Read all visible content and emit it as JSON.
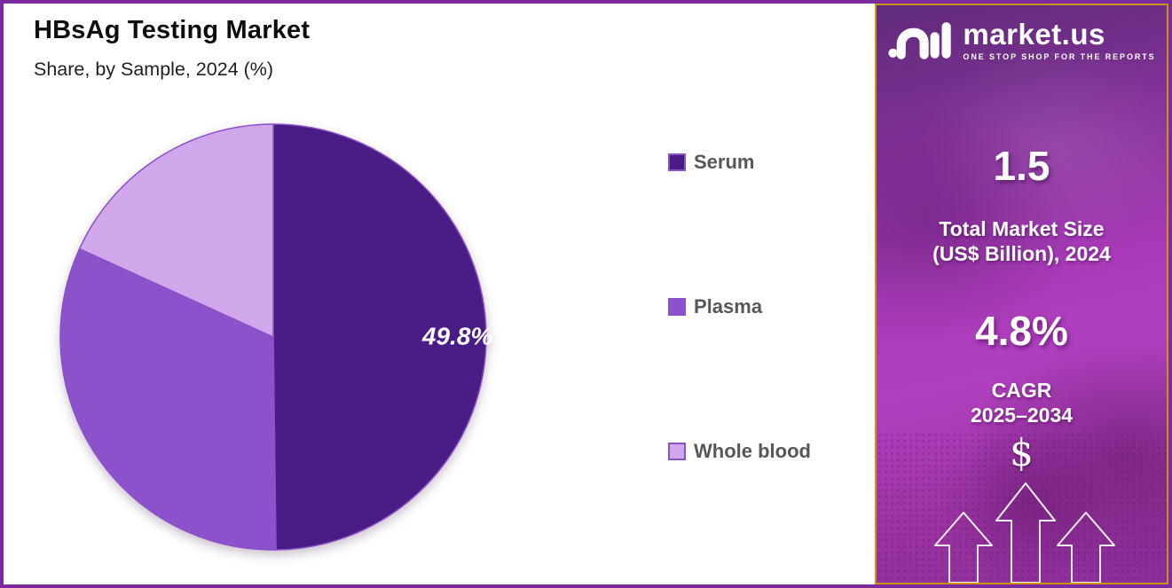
{
  "header": {
    "title": "HBsAg Testing Market",
    "subtitle": "Share, by Sample, 2024 (%)"
  },
  "chart_data": {
    "type": "pie",
    "title": "HBsAg Testing Market",
    "subtitle": "Share, by Sample, 2024 (%)",
    "categories": [
      "Serum",
      "Plasma",
      "Whole blood"
    ],
    "values": [
      49.8,
      32.0,
      18.2
    ],
    "value_labels": [
      "49.8%",
      "",
      ""
    ],
    "colors": [
      "#4a1c85",
      "#8c52cb",
      "#d0a7ea"
    ],
    "slice_border_color": "#8a50c5",
    "start_angle_deg": 0,
    "direction": "clockwise",
    "legend_position": "right"
  },
  "legend": {
    "items": [
      {
        "label": "Serum",
        "color": "#4a1c85",
        "border": "#8a52c8"
      },
      {
        "label": "Plasma",
        "color": "#8c52cb",
        "border": "#8c52cb"
      },
      {
        "label": "Whole blood",
        "color": "#d0a7ea",
        "border": "#8a52c8"
      }
    ]
  },
  "sidebar": {
    "logo": {
      "brand": "market.us",
      "tagline": "ONE STOP SHOP FOR THE REPORTS"
    },
    "stats": [
      {
        "value": "1.5",
        "label_line1": "Total Market Size",
        "label_line2": "(US$ Billion), 2024"
      },
      {
        "value": "4.8%",
        "label_line1": "CAGR",
        "label_line2": "2025–2034"
      }
    ],
    "dollar_symbol": "$",
    "colors": {
      "border_gold": "#c9940f",
      "bg_top": "#5f2b79",
      "bg_mid": "#a73ab6",
      "bg_bottom": "#8c2e9b",
      "frame_purple": "#7b2b9e"
    }
  }
}
